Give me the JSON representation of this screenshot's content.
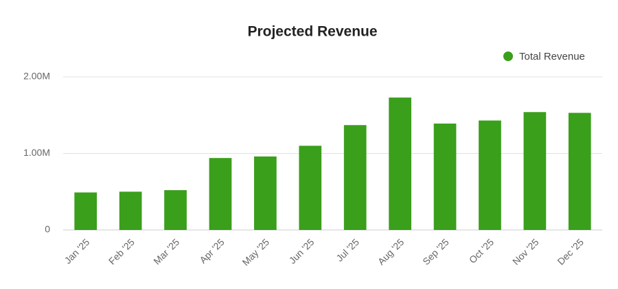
{
  "chart_data": {
    "type": "bar",
    "title": "Projected Revenue",
    "categories": [
      "Jan '25",
      "Feb '25",
      "Mar '25",
      "Apr '25",
      "May '25",
      "Jun '25",
      "Jul '25",
      "Aug '25",
      "Sep '25",
      "Oct '25",
      "Nov '25",
      "Dec '25"
    ],
    "series": [
      {
        "name": "Total Revenue",
        "color": "#3a9f1b",
        "values": [
          490000,
          500000,
          520000,
          940000,
          960000,
          1100000,
          1370000,
          1730000,
          1390000,
          1430000,
          1540000,
          1530000
        ]
      }
    ],
    "ylim": [
      0,
      2000000
    ],
    "yticks": [
      0,
      {
        "value": 1000000,
        "label": "1.00M"
      },
      {
        "value": 2000000,
        "label": "2.00M"
      }
    ],
    "grid": true,
    "legend": "top-right"
  }
}
